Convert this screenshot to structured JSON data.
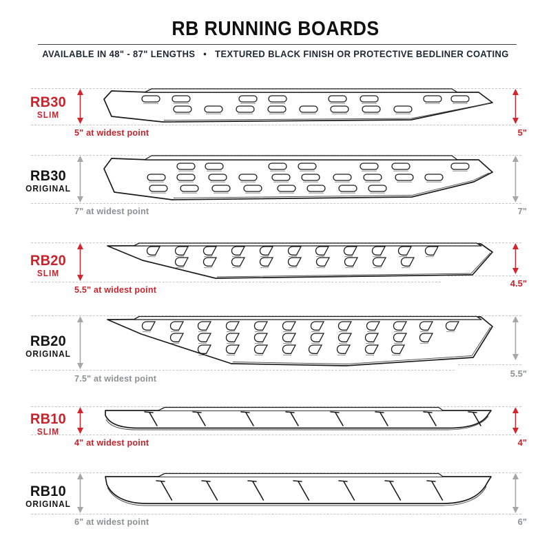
{
  "header": {
    "title": "RB RUNNING BOARDS",
    "subtitle": "AVAILABLE IN 48\" - 87\" LENGTHS   •   TEXTURED BLACK FINISH OR PROTECTIVE BEDLINER COATING"
  },
  "colors": {
    "accent_red": "#C9232B",
    "gray": "#8E9093",
    "line_black": "#1b1b1b",
    "dashed_guide": "#c6c6c6"
  },
  "boards": [
    {
      "model": "RB30",
      "variant": "SLIM",
      "theme": "red",
      "width_note": "5\" at widest point",
      "height_label": "5\""
    },
    {
      "model": "RB30",
      "variant": "ORIGINAL",
      "theme": "gray",
      "width_note": "7\" at widest point",
      "height_label": "7\""
    },
    {
      "model": "RB20",
      "variant": "SLIM",
      "theme": "red",
      "width_note": "5.5\" at widest point",
      "height_label": "4.5\""
    },
    {
      "model": "RB20",
      "variant": "ORIGINAL",
      "theme": "gray",
      "width_note": "7.5\" at widest point",
      "height_label": "5.5\""
    },
    {
      "model": "RB10",
      "variant": "SLIM",
      "theme": "red",
      "width_note": "4\" at widest point",
      "height_label": "4\""
    },
    {
      "model": "RB10",
      "variant": "ORIGINAL",
      "theme": "gray",
      "width_note": "6\" at widest point",
      "height_label": "6\""
    }
  ]
}
